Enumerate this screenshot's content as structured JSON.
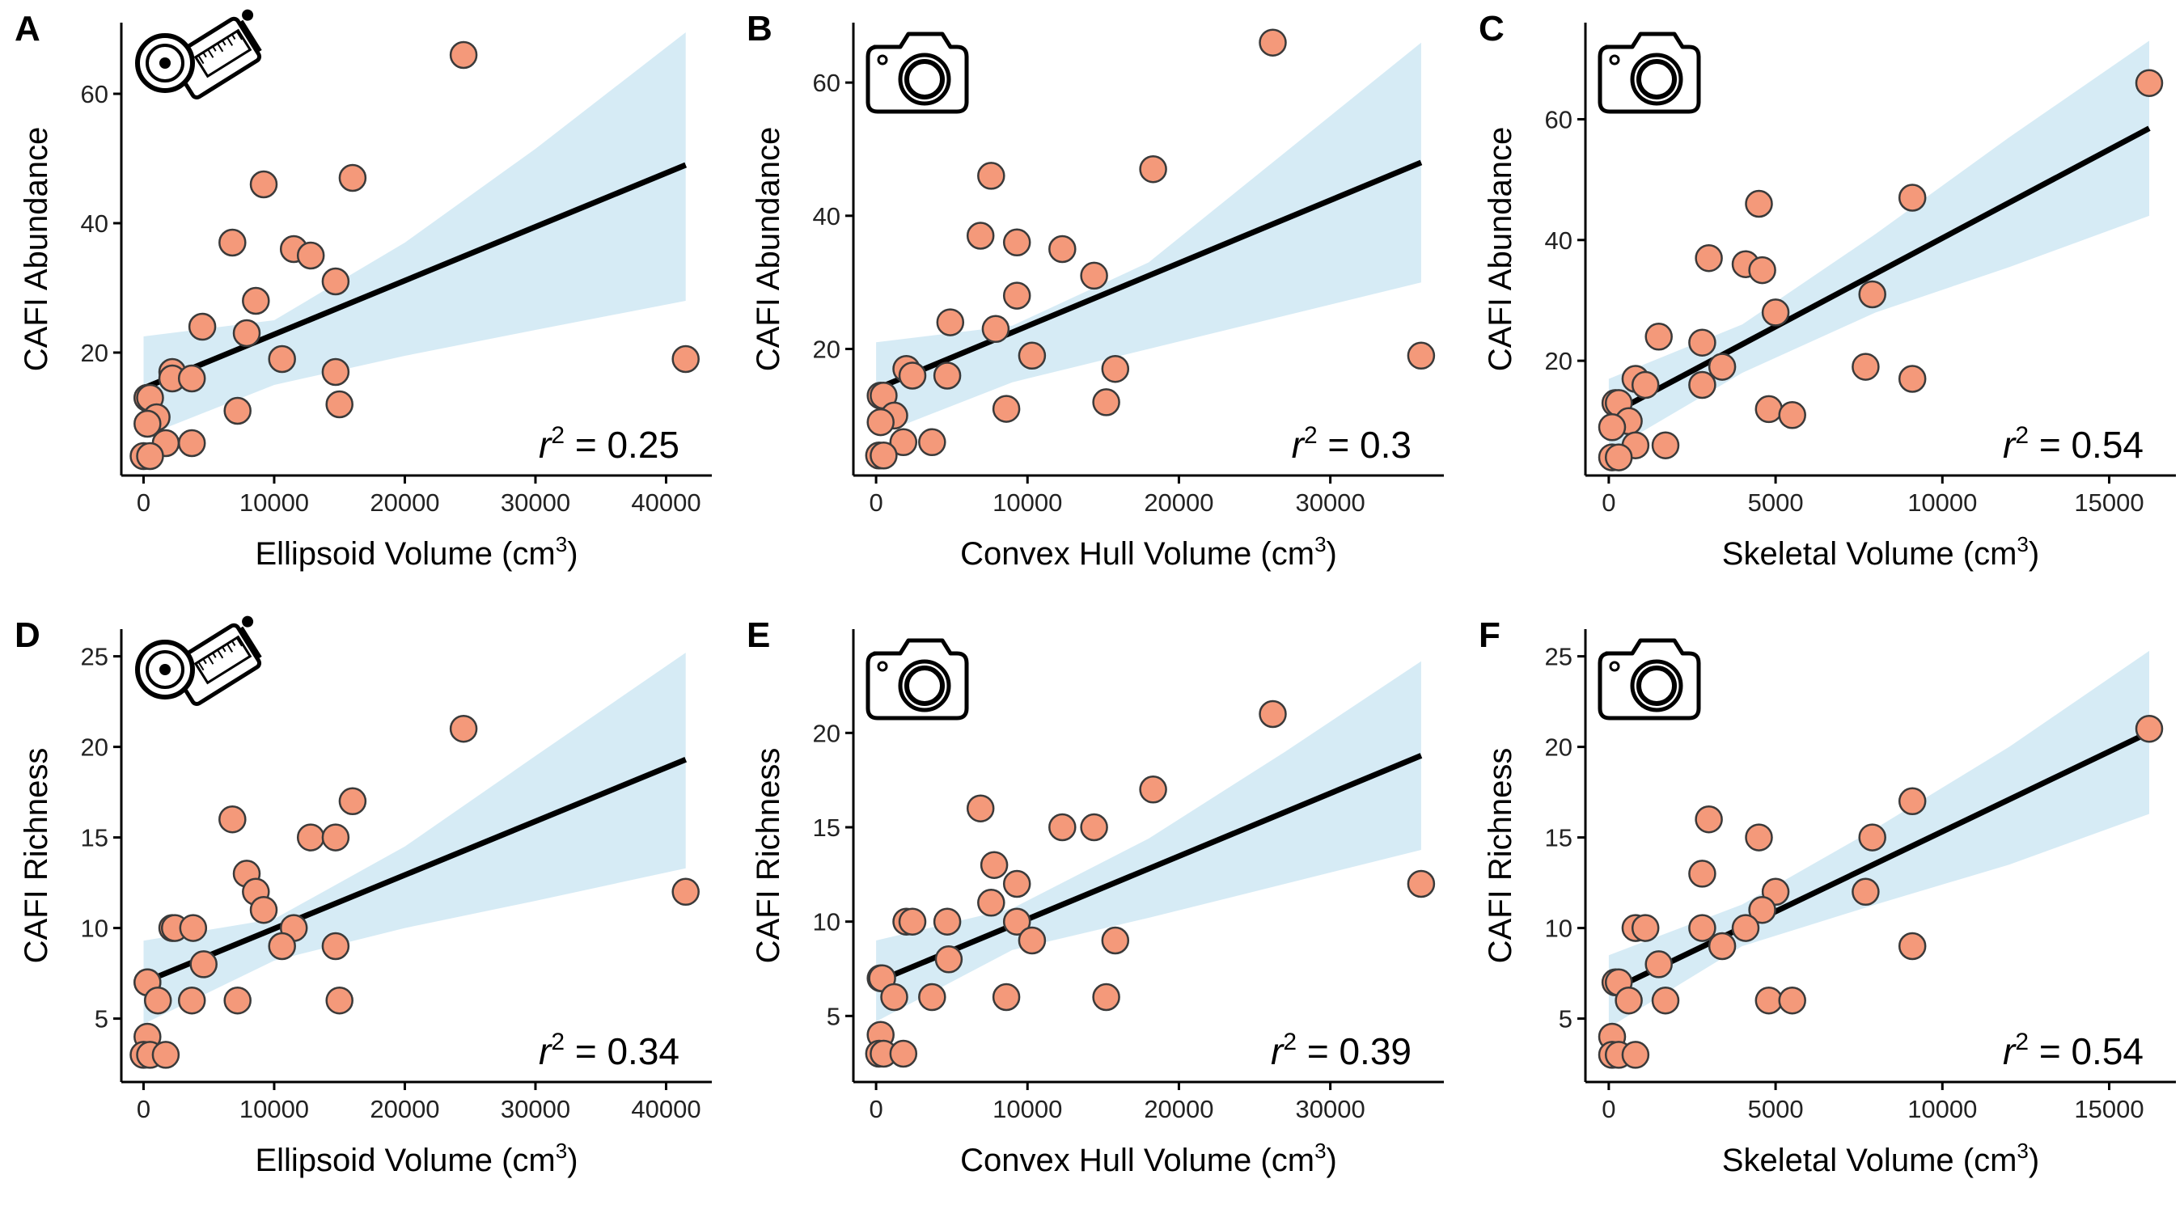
{
  "figure": {
    "background": "#ffffff",
    "point_fill": "#f4997a",
    "point_stroke": "#3a3a3a",
    "fit_line_color": "#000000",
    "band_color": "#c8e4f1"
  },
  "chart_data": [
    {
      "panel": "A",
      "type": "scatter",
      "icon": "tape-measure-icon",
      "xlabel": "Ellipsoid Volume (cm",
      "xlabel_sup": "3",
      "xlabel_end": ")",
      "ylabel": "CAFI Abundance",
      "r2_sym": "r",
      "r2_sup": "2",
      "r2_value": " = 0.25",
      "xlim": [
        -1700,
        43500
      ],
      "ylim": [
        1,
        71
      ],
      "xticks": [
        0,
        10000,
        20000,
        30000,
        40000
      ],
      "xtick_labels": [
        "0",
        "10000",
        "20000",
        "30000",
        "40000"
      ],
      "yticks": [
        20,
        40,
        60
      ],
      "ytick_labels": [
        "20",
        "40",
        "60"
      ],
      "grid": false,
      "legend": "none",
      "fit": {
        "x": [
          0,
          41500
        ],
        "y": [
          14.5,
          49
        ]
      },
      "band": {
        "x": [
          0,
          10000,
          20000,
          30000,
          41500
        ],
        "lower": [
          7,
          15,
          19.5,
          23.5,
          28
        ],
        "upper": [
          22.5,
          25,
          37,
          51.5,
          69.5
        ]
      },
      "points": [
        {
          "x": 24500,
          "y": 66
        },
        {
          "x": 16000,
          "y": 47
        },
        {
          "x": 9200,
          "y": 46
        },
        {
          "x": 6800,
          "y": 37
        },
        {
          "x": 11500,
          "y": 36
        },
        {
          "x": 12800,
          "y": 35
        },
        {
          "x": 14700,
          "y": 31
        },
        {
          "x": 8600,
          "y": 28
        },
        {
          "x": 4500,
          "y": 24
        },
        {
          "x": 7900,
          "y": 23
        },
        {
          "x": 10600,
          "y": 19
        },
        {
          "x": 41500,
          "y": 19
        },
        {
          "x": 2200,
          "y": 17
        },
        {
          "x": 14700,
          "y": 17
        },
        {
          "x": 2200,
          "y": 16
        },
        {
          "x": 3700,
          "y": 16
        },
        {
          "x": 300,
          "y": 13
        },
        {
          "x": 300,
          "y": 13
        },
        {
          "x": 500,
          "y": 13
        },
        {
          "x": 15000,
          "y": 12
        },
        {
          "x": 7200,
          "y": 11
        },
        {
          "x": 1000,
          "y": 10
        },
        {
          "x": 300,
          "y": 9
        },
        {
          "x": 1700,
          "y": 6
        },
        {
          "x": 3700,
          "y": 6
        },
        {
          "x": 0,
          "y": 4
        },
        {
          "x": 500,
          "y": 4
        }
      ]
    },
    {
      "panel": "B",
      "type": "scatter",
      "icon": "camera-icon",
      "xlabel": "Convex Hull Volume (cm",
      "xlabel_sup": "3",
      "xlabel_end": ")",
      "ylabel": "CAFI Abundance",
      "r2_sym": "r",
      "r2_sup": "2",
      "r2_value": " = 0.3",
      "xlim": [
        -1500,
        37500
      ],
      "ylim": [
        1,
        69
      ],
      "xticks": [
        0,
        10000,
        20000,
        30000
      ],
      "xtick_labels": [
        "0",
        "10000",
        "20000",
        "30000"
      ],
      "yticks": [
        20,
        40,
        60
      ],
      "ytick_labels": [
        "20",
        "40",
        "60"
      ],
      "grid": false,
      "legend": "none",
      "fit": {
        "x": [
          0,
          36000
        ],
        "y": [
          14,
          48
        ]
      },
      "band": {
        "x": [
          0,
          9000,
          18000,
          27000,
          36000
        ],
        "lower": [
          7,
          15,
          20,
          25,
          30
        ],
        "upper": [
          21,
          23.5,
          33,
          49.5,
          66
        ]
      },
      "points": [
        {
          "x": 26200,
          "y": 66
        },
        {
          "x": 18300,
          "y": 47
        },
        {
          "x": 7600,
          "y": 46
        },
        {
          "x": 6900,
          "y": 37
        },
        {
          "x": 9300,
          "y": 36
        },
        {
          "x": 12300,
          "y": 35
        },
        {
          "x": 14400,
          "y": 31
        },
        {
          "x": 9300,
          "y": 28
        },
        {
          "x": 4900,
          "y": 24
        },
        {
          "x": 7900,
          "y": 23
        },
        {
          "x": 10300,
          "y": 19
        },
        {
          "x": 36000,
          "y": 19
        },
        {
          "x": 2000,
          "y": 17
        },
        {
          "x": 15800,
          "y": 17
        },
        {
          "x": 2400,
          "y": 16
        },
        {
          "x": 4700,
          "y": 16
        },
        {
          "x": 300,
          "y": 13
        },
        {
          "x": 500,
          "y": 13
        },
        {
          "x": 15200,
          "y": 12
        },
        {
          "x": 8600,
          "y": 11
        },
        {
          "x": 1200,
          "y": 10
        },
        {
          "x": 300,
          "y": 9
        },
        {
          "x": 1800,
          "y": 6
        },
        {
          "x": 3700,
          "y": 6
        },
        {
          "x": 200,
          "y": 4
        },
        {
          "x": 500,
          "y": 4
        }
      ]
    },
    {
      "panel": "C",
      "type": "scatter",
      "icon": "camera-icon",
      "xlabel": "Skeletal Volume (cm",
      "xlabel_sup": "3",
      "xlabel_end": ")",
      "ylabel": "CAFI Abundance",
      "r2_sym": "r",
      "r2_sup": "2",
      "r2_value": " = 0.54",
      "xlim": [
        -700,
        17000
      ],
      "ylim": [
        1,
        76
      ],
      "xticks": [
        0,
        5000,
        10000,
        15000
      ],
      "xtick_labels": [
        "0",
        "5000",
        "10000",
        "15000"
      ],
      "yticks": [
        20,
        40,
        60
      ],
      "ytick_labels": [
        "20",
        "40",
        "60"
      ],
      "grid": false,
      "legend": "none",
      "fit": {
        "x": [
          0,
          16200
        ],
        "y": [
          11,
          58.5
        ]
      },
      "band": {
        "x": [
          0,
          4000,
          8000,
          12000,
          16200
        ],
        "lower": [
          5,
          18,
          28,
          35.5,
          44
        ],
        "upper": [
          17,
          26,
          41,
          57,
          73
        ]
      },
      "points": [
        {
          "x": 16200,
          "y": 66
        },
        {
          "x": 9100,
          "y": 47
        },
        {
          "x": 4500,
          "y": 46
        },
        {
          "x": 3000,
          "y": 37
        },
        {
          "x": 4100,
          "y": 36
        },
        {
          "x": 4600,
          "y": 35
        },
        {
          "x": 7900,
          "y": 31
        },
        {
          "x": 5000,
          "y": 28
        },
        {
          "x": 1500,
          "y": 24
        },
        {
          "x": 2800,
          "y": 23
        },
        {
          "x": 3400,
          "y": 19
        },
        {
          "x": 7700,
          "y": 19
        },
        {
          "x": 800,
          "y": 17
        },
        {
          "x": 9100,
          "y": 17
        },
        {
          "x": 1100,
          "y": 16
        },
        {
          "x": 2800,
          "y": 16
        },
        {
          "x": 200,
          "y": 13
        },
        {
          "x": 300,
          "y": 13
        },
        {
          "x": 4800,
          "y": 12
        },
        {
          "x": 5500,
          "y": 11
        },
        {
          "x": 600,
          "y": 10
        },
        {
          "x": 100,
          "y": 9
        },
        {
          "x": 800,
          "y": 6
        },
        {
          "x": 1700,
          "y": 6
        },
        {
          "x": 100,
          "y": 4
        },
        {
          "x": 300,
          "y": 4
        }
      ]
    },
    {
      "panel": "D",
      "type": "scatter",
      "icon": "tape-measure-icon",
      "xlabel": "Ellipsoid Volume (cm",
      "xlabel_sup": "3",
      "xlabel_end": ")",
      "ylabel": "CAFI Richness",
      "r2_sym": "r",
      "r2_sup": "2",
      "r2_value": " = 0.34",
      "xlim": [
        -1700,
        43500
      ],
      "ylim": [
        1.5,
        26.5
      ],
      "xticks": [
        0,
        10000,
        20000,
        30000,
        40000
      ],
      "xtick_labels": [
        "0",
        "10000",
        "20000",
        "30000",
        "40000"
      ],
      "yticks": [
        5,
        10,
        15,
        20,
        25
      ],
      "ytick_labels": [
        "5",
        "10",
        "15",
        "20",
        "25"
      ],
      "grid": false,
      "legend": "none",
      "fit": {
        "x": [
          0,
          41500
        ],
        "y": [
          7,
          19.3
        ]
      },
      "band": {
        "x": [
          0,
          10000,
          20000,
          30000,
          41500
        ],
        "lower": [
          4.7,
          8.2,
          10,
          11.5,
          13.3
        ],
        "upper": [
          9.3,
          10.5,
          14.5,
          19.5,
          25.2
        ]
      },
      "points": [
        {
          "x": 24500,
          "y": 21
        },
        {
          "x": 6800,
          "y": 16
        },
        {
          "x": 16000,
          "y": 17
        },
        {
          "x": 12800,
          "y": 15
        },
        {
          "x": 14700,
          "y": 15
        },
        {
          "x": 7900,
          "y": 13
        },
        {
          "x": 8600,
          "y": 12
        },
        {
          "x": 9200,
          "y": 11
        },
        {
          "x": 41500,
          "y": 12
        },
        {
          "x": 2200,
          "y": 10
        },
        {
          "x": 2400,
          "y": 10
        },
        {
          "x": 3800,
          "y": 10
        },
        {
          "x": 11500,
          "y": 10
        },
        {
          "x": 10600,
          "y": 9
        },
        {
          "x": 14700,
          "y": 9
        },
        {
          "x": 4600,
          "y": 8
        },
        {
          "x": 300,
          "y": 7
        },
        {
          "x": 300,
          "y": 7
        },
        {
          "x": 1100,
          "y": 6
        },
        {
          "x": 3700,
          "y": 6
        },
        {
          "x": 7200,
          "y": 6
        },
        {
          "x": 15000,
          "y": 6
        },
        {
          "x": 300,
          "y": 4
        },
        {
          "x": 0,
          "y": 3
        },
        {
          "x": 500,
          "y": 3
        },
        {
          "x": 1700,
          "y": 3
        }
      ]
    },
    {
      "panel": "E",
      "type": "scatter",
      "icon": "camera-icon",
      "xlabel": "Convex Hull Volume (cm",
      "xlabel_sup": "3",
      "xlabel_end": ")",
      "ylabel": "CAFI Richness",
      "r2_sym": "r",
      "r2_sup": "2",
      "r2_value": " = 0.39",
      "xlim": [
        -1500,
        37500
      ],
      "ylim": [
        1.5,
        25.5
      ],
      "xticks": [
        0,
        10000,
        20000,
        30000
      ],
      "xtick_labels": [
        "0",
        "10000",
        "20000",
        "30000"
      ],
      "yticks": [
        5,
        10,
        15,
        20
      ],
      "ytick_labels": [
        "5",
        "10",
        "15",
        "20"
      ],
      "grid": false,
      "legend": "none",
      "fit": {
        "x": [
          0,
          36000
        ],
        "y": [
          6.8,
          18.8
        ]
      },
      "band": {
        "x": [
          0,
          9000,
          18000,
          27000,
          36000
        ],
        "lower": [
          4.7,
          8.5,
          10.2,
          12,
          13.8
        ],
        "upper": [
          9,
          10.7,
          14.4,
          19,
          23.8
        ]
      },
      "points": [
        {
          "x": 26200,
          "y": 21
        },
        {
          "x": 6900,
          "y": 16
        },
        {
          "x": 18300,
          "y": 17
        },
        {
          "x": 12300,
          "y": 15
        },
        {
          "x": 14400,
          "y": 15
        },
        {
          "x": 7800,
          "y": 13
        },
        {
          "x": 9300,
          "y": 12
        },
        {
          "x": 7600,
          "y": 11
        },
        {
          "x": 36000,
          "y": 12
        },
        {
          "x": 2000,
          "y": 10
        },
        {
          "x": 2400,
          "y": 10
        },
        {
          "x": 4700,
          "y": 10
        },
        {
          "x": 9300,
          "y": 10
        },
        {
          "x": 10300,
          "y": 9
        },
        {
          "x": 15800,
          "y": 9
        },
        {
          "x": 4800,
          "y": 8
        },
        {
          "x": 300,
          "y": 7
        },
        {
          "x": 400,
          "y": 7
        },
        {
          "x": 1200,
          "y": 6
        },
        {
          "x": 3700,
          "y": 6
        },
        {
          "x": 8600,
          "y": 6
        },
        {
          "x": 15200,
          "y": 6
        },
        {
          "x": 300,
          "y": 4
        },
        {
          "x": 200,
          "y": 3
        },
        {
          "x": 500,
          "y": 3
        },
        {
          "x": 1800,
          "y": 3
        }
      ]
    },
    {
      "panel": "F",
      "type": "scatter",
      "icon": "camera-icon",
      "xlabel": "Skeletal Volume (cm",
      "xlabel_sup": "3",
      "xlabel_end": ")",
      "ylabel": "CAFI Richness",
      "r2_sym": "r",
      "r2_sup": "2",
      "r2_value": " = 0.54",
      "xlim": [
        -700,
        17000
      ],
      "ylim": [
        1.5,
        26.5
      ],
      "xticks": [
        0,
        5000,
        10000,
        15000
      ],
      "xtick_labels": [
        "0",
        "5000",
        "10000",
        "15000"
      ],
      "yticks": [
        5,
        10,
        15,
        20,
        25
      ],
      "ytick_labels": [
        "5",
        "10",
        "15",
        "20",
        "25"
      ],
      "grid": false,
      "legend": "none",
      "fit": {
        "x": [
          0,
          16200
        ],
        "y": [
          6.5,
          20.8
        ]
      },
      "band": {
        "x": [
          0,
          4000,
          8000,
          12000,
          16200
        ],
        "lower": [
          4.5,
          9,
          11.3,
          13.5,
          16.3
        ],
        "upper": [
          8.5,
          11.3,
          15.5,
          20,
          25.3
        ]
      },
      "points": [
        {
          "x": 16200,
          "y": 21
        },
        {
          "x": 3000,
          "y": 16
        },
        {
          "x": 9100,
          "y": 17
        },
        {
          "x": 4500,
          "y": 15
        },
        {
          "x": 7900,
          "y": 15
        },
        {
          "x": 2800,
          "y": 13
        },
        {
          "x": 5000,
          "y": 12
        },
        {
          "x": 4600,
          "y": 11
        },
        {
          "x": 7700,
          "y": 12
        },
        {
          "x": 800,
          "y": 10
        },
        {
          "x": 1100,
          "y": 10
        },
        {
          "x": 2800,
          "y": 10
        },
        {
          "x": 4100,
          "y": 10
        },
        {
          "x": 3400,
          "y": 9
        },
        {
          "x": 9100,
          "y": 9
        },
        {
          "x": 1500,
          "y": 8
        },
        {
          "x": 200,
          "y": 7
        },
        {
          "x": 300,
          "y": 7
        },
        {
          "x": 600,
          "y": 6
        },
        {
          "x": 1700,
          "y": 6
        },
        {
          "x": 4800,
          "y": 6
        },
        {
          "x": 5500,
          "y": 6
        },
        {
          "x": 100,
          "y": 4
        },
        {
          "x": 100,
          "y": 3
        },
        {
          "x": 300,
          "y": 3
        },
        {
          "x": 800,
          "y": 3
        }
      ]
    }
  ]
}
